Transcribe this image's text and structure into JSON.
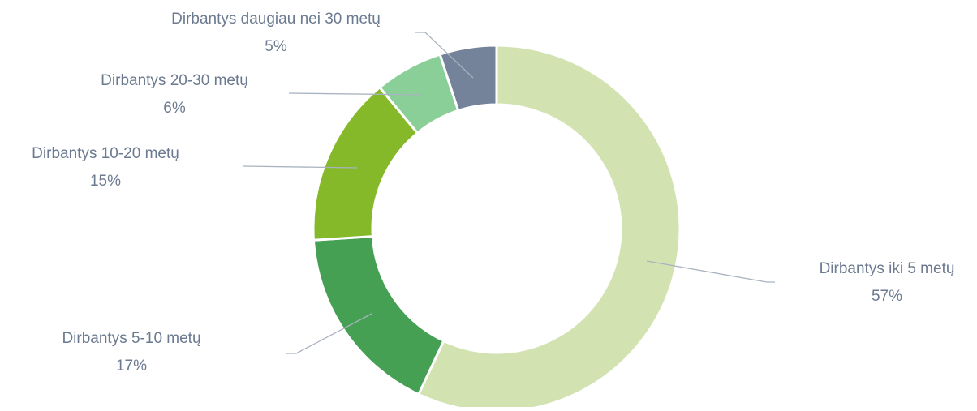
{
  "chart_data": {
    "type": "donut",
    "categories": [
      "Dirbantys iki 5 metų",
      "Dirbantys 5-10 metų",
      "Dirbantys 10-20 metų",
      "Dirbantys 20-30 metų",
      "Dirbantys daugiau nei 30 metų"
    ],
    "values": [
      57,
      17,
      15,
      6,
      5
    ],
    "value_labels": [
      "57%",
      "17%",
      "15%",
      "6%",
      "5%"
    ],
    "colors": [
      "#d2e3b1",
      "#46a053",
      "#86b929",
      "#8bcf98",
      "#748399"
    ]
  }
}
